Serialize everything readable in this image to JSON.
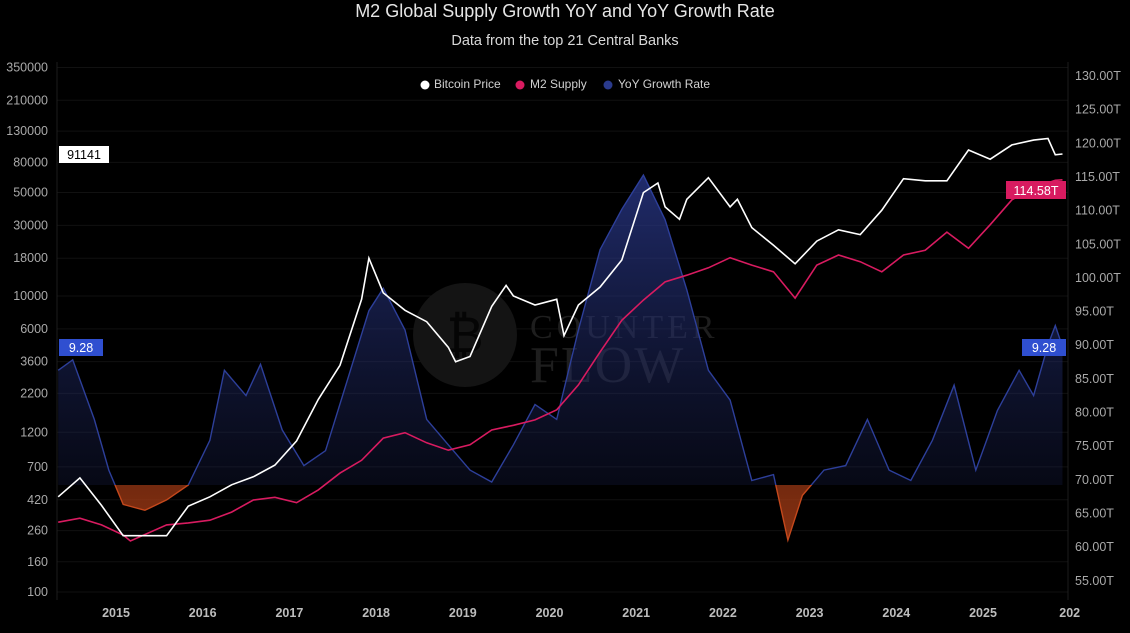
{
  "title": "M2 Global Supply Growth YoY and YoY Growth Rate",
  "subtitle": "Data from the top 21 Central Banks",
  "watermark": {
    "line1": "COUNTER",
    "line2": "FLOW",
    "icon": "bitcoin-icon"
  },
  "colors": {
    "bitcoin": "#ffffff",
    "m2": "#d81b60",
    "growth": "#2a3a8c",
    "growth_negative": "#b5421a",
    "background": "#000000"
  },
  "chart_data": {
    "type": "line",
    "title": "M2 Global Supply Growth YoY and YoY Growth Rate",
    "subtitle": "Data from the top 21 Central Banks",
    "legend": {
      "position": "top-center",
      "entries": [
        "Bitcoin Price",
        "M2 Supply",
        "YoY Growth Rate"
      ]
    },
    "grid": true,
    "x_ticks": [
      "2015",
      "2016",
      "2017",
      "2018",
      "2019",
      "2020",
      "2021",
      "2022",
      "2023",
      "2024",
      "2025",
      "202"
    ],
    "left_axis": {
      "scale": "log",
      "ylim": [
        100,
        350000
      ],
      "ticks": [
        "350000",
        "210000",
        "130000",
        "80000",
        "50000",
        "30000",
        "18000",
        "10000",
        "6000",
        "3600",
        "2200",
        "1200",
        "700",
        "420",
        "260",
        "160",
        "100"
      ]
    },
    "right_axis": {
      "scale": "linear",
      "ylim": [
        52,
        131
      ],
      "ticks": [
        "130.00T",
        "125.00T",
        "120.00T",
        "115.00T",
        "110.00T",
        "105.00T",
        "100.00T",
        "95.00T",
        "90.00T",
        "85.00T",
        "80.00T",
        "75.00T",
        "70.00T",
        "65.00T",
        "60.00T",
        "55.00T"
      ]
    },
    "last_value_labels": {
      "bitcoin": "91141",
      "m2": "114.58T",
      "growth_left": "9.28",
      "growth_right": "9.28"
    },
    "series": [
      {
        "name": "Bitcoin Price",
        "axis": "left",
        "points": [
          [
            "2014-05",
            440
          ],
          [
            "2014-08",
            590
          ],
          [
            "2014-11",
            385
          ],
          [
            "2015-02",
            240
          ],
          [
            "2015-05",
            240
          ],
          [
            "2015-08",
            240
          ],
          [
            "2015-11",
            380
          ],
          [
            "2016-02",
            440
          ],
          [
            "2016-05",
            530
          ],
          [
            "2016-08",
            600
          ],
          [
            "2016-11",
            720
          ],
          [
            "2017-02",
            1050
          ],
          [
            "2017-05",
            2000
          ],
          [
            "2017-08",
            3400
          ],
          [
            "2017-11",
            9500
          ],
          [
            "2017-12",
            18000
          ],
          [
            "2018-02",
            10500
          ],
          [
            "2018-05",
            8000
          ],
          [
            "2018-08",
            6700
          ],
          [
            "2018-11",
            4500
          ],
          [
            "2018-12",
            3600
          ],
          [
            "2019-02",
            3900
          ],
          [
            "2019-05",
            8500
          ],
          [
            "2019-07",
            11800
          ],
          [
            "2019-08",
            10000
          ],
          [
            "2019-11",
            8700
          ],
          [
            "2020-02",
            9500
          ],
          [
            "2020-03",
            5400
          ],
          [
            "2020-05",
            8700
          ],
          [
            "2020-08",
            11500
          ],
          [
            "2020-11",
            17500
          ],
          [
            "2021-02",
            50000
          ],
          [
            "2021-04",
            58000
          ],
          [
            "2021-05",
            40000
          ],
          [
            "2021-07",
            33000
          ],
          [
            "2021-08",
            45000
          ],
          [
            "2021-11",
            63000
          ],
          [
            "2022-02",
            40000
          ],
          [
            "2022-03",
            45000
          ],
          [
            "2022-05",
            29000
          ],
          [
            "2022-08",
            22000
          ],
          [
            "2022-11",
            16500
          ],
          [
            "2023-02",
            23500
          ],
          [
            "2023-05",
            28000
          ],
          [
            "2023-08",
            26000
          ],
          [
            "2023-11",
            38000
          ],
          [
            "2024-02",
            62000
          ],
          [
            "2024-05",
            60000
          ],
          [
            "2024-08",
            60000
          ],
          [
            "2024-11",
            97000
          ],
          [
            "2025-02",
            84000
          ],
          [
            "2025-05",
            105000
          ],
          [
            "2025-08",
            113000
          ],
          [
            "2025-10",
            116000
          ],
          [
            "2025-11",
            90000
          ],
          [
            "2025-12",
            91141
          ]
        ]
      },
      {
        "name": "M2 Supply",
        "axis": "right",
        "unit": "T",
        "points": [
          [
            "2014-05",
            63.7
          ],
          [
            "2014-08",
            64.3
          ],
          [
            "2014-11",
            63.3
          ],
          [
            "2015-02",
            61.8
          ],
          [
            "2015-03",
            60.9
          ],
          [
            "2015-08",
            63.3
          ],
          [
            "2015-11",
            63.6
          ],
          [
            "2016-02",
            64.0
          ],
          [
            "2016-05",
            65.2
          ],
          [
            "2016-08",
            67.0
          ],
          [
            "2016-11",
            67.4
          ],
          [
            "2017-02",
            66.6
          ],
          [
            "2017-05",
            68.5
          ],
          [
            "2017-08",
            71.0
          ],
          [
            "2017-11",
            72.9
          ],
          [
            "2018-02",
            76.2
          ],
          [
            "2018-05",
            77.0
          ],
          [
            "2018-08",
            75.5
          ],
          [
            "2018-11",
            74.4
          ],
          [
            "2019-02",
            75.2
          ],
          [
            "2019-05",
            77.4
          ],
          [
            "2019-08",
            78.1
          ],
          [
            "2019-11",
            78.9
          ],
          [
            "2020-02",
            80.4
          ],
          [
            "2020-05",
            84.1
          ],
          [
            "2020-08",
            89.0
          ],
          [
            "2020-11",
            93.7
          ],
          [
            "2021-02",
            96.7
          ],
          [
            "2021-05",
            99.4
          ],
          [
            "2021-08",
            100.4
          ],
          [
            "2021-11",
            101.5
          ],
          [
            "2022-02",
            103.0
          ],
          [
            "2022-05",
            101.9
          ],
          [
            "2022-08",
            100.9
          ],
          [
            "2022-11",
            97.0
          ],
          [
            "2023-02",
            101.9
          ],
          [
            "2023-05",
            103.4
          ],
          [
            "2023-08",
            102.4
          ],
          [
            "2023-11",
            100.9
          ],
          [
            "2024-02",
            103.4
          ],
          [
            "2024-05",
            104.1
          ],
          [
            "2024-08",
            106.8
          ],
          [
            "2024-11",
            104.4
          ],
          [
            "2025-02",
            107.9
          ],
          [
            "2025-05",
            111.6
          ],
          [
            "2025-08",
            113.4
          ],
          [
            "2025-11",
            114.5
          ],
          [
            "2025-12",
            114.58
          ]
        ]
      },
      {
        "name": "YoY Growth Rate",
        "axis": "hidden",
        "unit": "%",
        "points": [
          [
            "2014-05",
            7.7
          ],
          [
            "2014-07",
            8.4
          ],
          [
            "2014-10",
            4.4
          ],
          [
            "2014-12",
            1.0
          ],
          [
            "2015-02",
            -1.3
          ],
          [
            "2015-05",
            -1.7
          ],
          [
            "2015-08",
            -1.0
          ],
          [
            "2015-11",
            0.0
          ],
          [
            "2016-02",
            3.0
          ],
          [
            "2016-04",
            7.7
          ],
          [
            "2016-07",
            6.0
          ],
          [
            "2016-09",
            8.1
          ],
          [
            "2016-12",
            3.7
          ],
          [
            "2017-03",
            1.3
          ],
          [
            "2017-06",
            2.3
          ],
          [
            "2017-09",
            7.0
          ],
          [
            "2017-12",
            11.7
          ],
          [
            "2018-02",
            13.2
          ],
          [
            "2018-05",
            10.4
          ],
          [
            "2018-08",
            4.4
          ],
          [
            "2018-11",
            2.7
          ],
          [
            "2019-02",
            1.0
          ],
          [
            "2019-05",
            0.2
          ],
          [
            "2019-08",
            2.7
          ],
          [
            "2019-11",
            5.4
          ],
          [
            "2020-02",
            4.4
          ],
          [
            "2020-05",
            10.4
          ],
          [
            "2020-08",
            15.8
          ],
          [
            "2020-11",
            18.5
          ],
          [
            "2021-02",
            20.8
          ],
          [
            "2021-05",
            17.8
          ],
          [
            "2021-08",
            13.1
          ],
          [
            "2021-11",
            7.7
          ],
          [
            "2022-02",
            5.7
          ],
          [
            "2022-05",
            0.3
          ],
          [
            "2022-08",
            0.7
          ],
          [
            "2022-10",
            -3.7
          ],
          [
            "2022-12",
            -0.7
          ],
          [
            "2023-03",
            1.0
          ],
          [
            "2023-06",
            1.3
          ],
          [
            "2023-09",
            4.4
          ],
          [
            "2023-12",
            1.0
          ],
          [
            "2024-03",
            0.3
          ],
          [
            "2024-06",
            3.0
          ],
          [
            "2024-09",
            6.7
          ],
          [
            "2024-12",
            1.0
          ],
          [
            "2025-03",
            5.0
          ],
          [
            "2025-06",
            7.7
          ],
          [
            "2025-08",
            6.0
          ],
          [
            "2025-10",
            9.4
          ],
          [
            "2025-11",
            10.7
          ],
          [
            "2025-12",
            9.28
          ]
        ]
      }
    ]
  }
}
